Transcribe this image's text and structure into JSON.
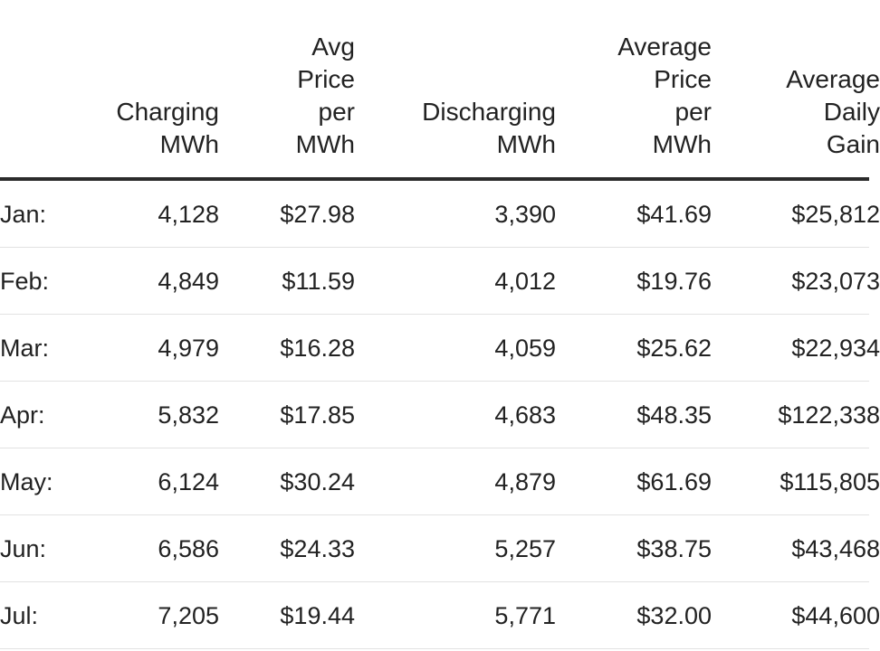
{
  "chart_data": {
    "type": "table",
    "columns": [
      {
        "key": "month",
        "lines": []
      },
      {
        "key": "charging_mwh",
        "lines": [
          "Charging",
          "MWh"
        ]
      },
      {
        "key": "avg_price_charging",
        "lines": [
          "Avg",
          "Price",
          "per",
          "MWh"
        ]
      },
      {
        "key": "discharging_mwh",
        "lines": [
          "Discharging",
          "MWh"
        ]
      },
      {
        "key": "avg_price_discharging",
        "lines": [
          "Average",
          "Price",
          "per",
          "MWh"
        ]
      },
      {
        "key": "avg_daily_gain",
        "lines": [
          "Average",
          "Daily",
          "Gain"
        ]
      }
    ],
    "rows": [
      {
        "month": "Jan:",
        "charging_mwh": "4,128",
        "avg_price_charging": "$27.98",
        "discharging_mwh": "3,390",
        "avg_price_discharging": "$41.69",
        "avg_daily_gain": "$25,812"
      },
      {
        "month": "Feb:",
        "charging_mwh": "4,849",
        "avg_price_charging": "$11.59",
        "discharging_mwh": "4,012",
        "avg_price_discharging": "$19.76",
        "avg_daily_gain": "$23,073"
      },
      {
        "month": "Mar:",
        "charging_mwh": "4,979",
        "avg_price_charging": "$16.28",
        "discharging_mwh": "4,059",
        "avg_price_discharging": "$25.62",
        "avg_daily_gain": "$22,934"
      },
      {
        "month": "Apr:",
        "charging_mwh": "5,832",
        "avg_price_charging": "$17.85",
        "discharging_mwh": "4,683",
        "avg_price_discharging": "$48.35",
        "avg_daily_gain": "$122,338"
      },
      {
        "month": "May:",
        "charging_mwh": "6,124",
        "avg_price_charging": "$30.24",
        "discharging_mwh": "4,879",
        "avg_price_discharging": "$61.69",
        "avg_daily_gain": "$115,805"
      },
      {
        "month": "Jun:",
        "charging_mwh": "6,586",
        "avg_price_charging": "$24.33",
        "discharging_mwh": "5,257",
        "avg_price_discharging": "$38.75",
        "avg_daily_gain": "$43,468"
      },
      {
        "month": "Jul:",
        "charging_mwh": "7,205",
        "avg_price_charging": "$19.44",
        "discharging_mwh": "5,771",
        "avg_price_discharging": "$32.00",
        "avg_daily_gain": "$44,600"
      }
    ]
  }
}
